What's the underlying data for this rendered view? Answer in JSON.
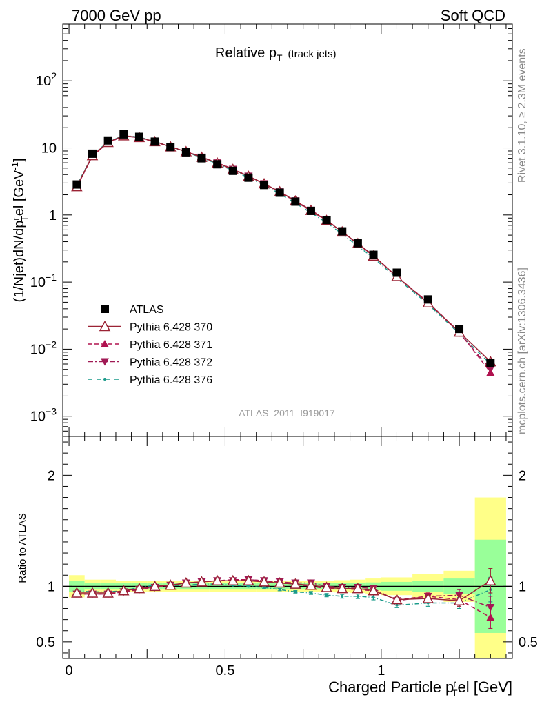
{
  "header": {
    "left_label": "7000 GeV pp",
    "right_label": "Soft QCD"
  },
  "side_labels": {
    "rivet": "Rivet 3.1.10, ≥ 2.3M events",
    "mcplots": "mcplots.cern.ch [arXiv:1306.3436]"
  },
  "colors": {
    "atlas": "#000000",
    "p370": "#9b2335",
    "p371": "#b0124f",
    "p372": "#a01a55",
    "p376": "#1a9a8a",
    "band_green": "#99ff99",
    "band_yellow": "#ffff88"
  },
  "chart_data": [
    {
      "type": "line",
      "title": "Relative p",
      "title_sub": "T",
      "title_suffix": "(track jets)",
      "ylabel": "(1/Njet)dN/dp",
      "ylabel_sub": "T",
      "ylabel_sup": "r",
      "ylabel_suffix": "el [GeV",
      "ylabel_unit_sup": "-1",
      "ylabel_close": "]",
      "watermark": "ATLAS_2011_I919017",
      "yscale": "log",
      "ylim": [
        0.0005,
        700
      ],
      "xlim": [
        -0.02,
        1.42
      ],
      "ytick_labels": [
        {
          "value": 0.001,
          "base": "10",
          "exp": "−3"
        },
        {
          "value": 0.01,
          "base": "10",
          "exp": "−2"
        },
        {
          "value": 0.1,
          "base": "10",
          "exp": "−1"
        },
        {
          "value": 1,
          "base": "1",
          "exp": ""
        },
        {
          "value": 10,
          "base": "10",
          "exp": ""
        },
        {
          "value": 100,
          "base": "10",
          "exp": "2"
        }
      ],
      "legend": {
        "placement": "lower-left",
        "entries": [
          "ATLAS",
          "Pythia 6.428 370",
          "Pythia 6.428 371",
          "Pythia 6.428 372",
          "Pythia 6.428 376"
        ]
      },
      "x": [
        0.025,
        0.075,
        0.125,
        0.175,
        0.225,
        0.275,
        0.325,
        0.375,
        0.425,
        0.475,
        0.525,
        0.575,
        0.625,
        0.675,
        0.725,
        0.775,
        0.825,
        0.875,
        0.925,
        0.975,
        1.05,
        1.15,
        1.25,
        1.35
      ],
      "series": [
        {
          "name": "ATLAS",
          "values": [
            2.85,
            8.2,
            12.9,
            15.9,
            14.6,
            12.4,
            10.3,
            8.6,
            7.0,
            5.7,
            4.55,
            3.6,
            2.8,
            2.15,
            1.58,
            1.15,
            0.84,
            0.57,
            0.38,
            0.255,
            0.138,
            0.055,
            0.02,
            0.0062
          ]
        },
        {
          "name": "Pythia 6.428 370",
          "values": [
            2.65,
            7.7,
            12.1,
            15.2,
            14.3,
            12.4,
            10.4,
            8.8,
            7.25,
            5.95,
            4.78,
            3.77,
            2.92,
            2.22,
            1.62,
            1.17,
            0.83,
            0.56,
            0.375,
            0.245,
            0.121,
            0.049,
            0.018,
            0.0065
          ]
        },
        {
          "name": "Pythia 6.428 371",
          "values": [
            2.6,
            7.6,
            11.9,
            15.1,
            14.2,
            12.3,
            10.4,
            8.9,
            7.3,
            6.0,
            4.85,
            3.8,
            2.92,
            2.2,
            1.6,
            1.15,
            0.82,
            0.56,
            0.37,
            0.245,
            0.121,
            0.05,
            0.018,
            0.0045
          ]
        },
        {
          "name": "Pythia 6.428 372",
          "values": [
            2.6,
            7.6,
            11.9,
            15.1,
            14.2,
            12.3,
            10.4,
            8.85,
            7.3,
            6.0,
            4.8,
            3.8,
            2.93,
            2.22,
            1.63,
            1.18,
            0.84,
            0.56,
            0.375,
            0.25,
            0.12,
            0.05,
            0.0175,
            0.005
          ]
        },
        {
          "name": "Pythia 6.428 376",
          "values": [
            2.75,
            7.8,
            12.3,
            15.3,
            14.5,
            12.5,
            10.4,
            8.7,
            7.15,
            5.8,
            4.6,
            3.6,
            2.78,
            2.08,
            1.5,
            1.08,
            0.77,
            0.52,
            0.345,
            0.23,
            0.114,
            0.047,
            0.017,
            0.006
          ]
        }
      ]
    },
    {
      "type": "line",
      "ylabel": "Ratio to ATLAS",
      "xlabel": "Charged Particle p",
      "xlabel_sub": "T",
      "xlabel_sup": "r",
      "xlabel_suffix": "el [GeV]",
      "ylim": [
        0.35,
        2.35
      ],
      "xlim": [
        -0.02,
        1.42
      ],
      "xtick_labels": [
        {
          "value": 0,
          "label": "0"
        },
        {
          "value": 0.5,
          "label": "0.5"
        },
        {
          "value": 1,
          "label": "1"
        }
      ],
      "ytick_labels": [
        {
          "value": 0.5,
          "label": "0.5"
        },
        {
          "value": 1,
          "label": "1"
        },
        {
          "value": 2,
          "label": "2"
        }
      ],
      "bins": [
        0,
        0.05,
        0.1,
        0.15,
        0.2,
        0.25,
        0.3,
        0.35,
        0.4,
        0.45,
        0.5,
        0.55,
        0.6,
        0.65,
        0.7,
        0.75,
        0.8,
        0.85,
        0.9,
        0.95,
        1.0,
        1.1,
        1.2,
        1.3,
        1.4
      ],
      "band_inner": [
        0.05,
        0.03,
        0.03,
        0.03,
        0.03,
        0.03,
        0.03,
        0.03,
        0.03,
        0.03,
        0.03,
        0.03,
        0.03,
        0.03,
        0.03,
        0.03,
        0.03,
        0.03,
        0.03,
        0.035,
        0.04,
        0.05,
        0.07,
        0.42
      ],
      "band_outer": [
        0.1,
        0.06,
        0.06,
        0.05,
        0.05,
        0.05,
        0.05,
        0.05,
        0.05,
        0.05,
        0.05,
        0.05,
        0.05,
        0.05,
        0.05,
        0.05,
        0.05,
        0.055,
        0.06,
        0.07,
        0.08,
        0.11,
        0.14,
        0.8
      ],
      "x": [
        0.025,
        0.075,
        0.125,
        0.175,
        0.225,
        0.275,
        0.325,
        0.375,
        0.425,
        0.475,
        0.525,
        0.575,
        0.625,
        0.675,
        0.725,
        0.775,
        0.825,
        0.875,
        0.925,
        0.975,
        1.05,
        1.15,
        1.25,
        1.35
      ],
      "series": [
        {
          "name": "Pythia 6.428 370",
          "values": [
            0.94,
            0.94,
            0.94,
            0.96,
            0.98,
            1.0,
            1.01,
            1.03,
            1.04,
            1.05,
            1.05,
            1.05,
            1.04,
            1.03,
            1.02,
            1.01,
            0.99,
            0.98,
            0.98,
            0.96,
            0.88,
            0.89,
            0.87,
            1.05
          ]
        },
        {
          "name": "Pythia 6.428 371",
          "values": [
            0.93,
            0.93,
            0.93,
            0.95,
            0.98,
            0.99,
            1.01,
            1.03,
            1.04,
            1.05,
            1.06,
            1.06,
            1.05,
            1.03,
            1.02,
            1.0,
            0.98,
            0.98,
            0.97,
            0.96,
            0.88,
            0.91,
            0.88,
            0.72
          ]
        },
        {
          "name": "Pythia 6.428 372",
          "values": [
            0.93,
            0.93,
            0.93,
            0.95,
            0.97,
            0.99,
            1.01,
            1.03,
            1.04,
            1.05,
            1.05,
            1.06,
            1.05,
            1.04,
            1.03,
            1.03,
            1.0,
            0.99,
            0.99,
            0.98,
            0.87,
            0.91,
            0.92,
            0.81
          ]
        },
        {
          "name": "Pythia 6.428 376",
          "values": [
            0.96,
            0.95,
            0.95,
            0.96,
            0.99,
            1.01,
            1.01,
            1.01,
            1.02,
            1.02,
            1.01,
            1.0,
            0.99,
            0.97,
            0.95,
            0.94,
            0.92,
            0.91,
            0.91,
            0.9,
            0.83,
            0.85,
            0.85,
            0.97
          ]
        }
      ],
      "errors": {
        "Pythia 6.428 370": [
          0.005,
          0.005,
          0.005,
          0.005,
          0.005,
          0.005,
          0.005,
          0.005,
          0.006,
          0.006,
          0.006,
          0.007,
          0.008,
          0.009,
          0.01,
          0.012,
          0.013,
          0.015,
          0.018,
          0.02,
          0.02,
          0.03,
          0.05,
          0.11
        ],
        "Pythia 6.428 371": [
          0.005,
          0.005,
          0.005,
          0.005,
          0.005,
          0.005,
          0.005,
          0.005,
          0.006,
          0.006,
          0.006,
          0.007,
          0.008,
          0.009,
          0.01,
          0.012,
          0.013,
          0.015,
          0.018,
          0.02,
          0.02,
          0.03,
          0.05,
          0.1
        ],
        "Pythia 6.428 372": [
          0.005,
          0.005,
          0.005,
          0.005,
          0.005,
          0.005,
          0.005,
          0.005,
          0.006,
          0.006,
          0.006,
          0.007,
          0.008,
          0.009,
          0.01,
          0.012,
          0.013,
          0.015,
          0.018,
          0.02,
          0.02,
          0.03,
          0.05,
          0.1
        ],
        "Pythia 6.428 376": [
          0.005,
          0.005,
          0.005,
          0.005,
          0.005,
          0.005,
          0.005,
          0.005,
          0.006,
          0.006,
          0.006,
          0.007,
          0.008,
          0.01,
          0.011,
          0.013,
          0.015,
          0.017,
          0.02,
          0.022,
          0.022,
          0.03,
          0.05,
          0.11
        ]
      }
    }
  ]
}
